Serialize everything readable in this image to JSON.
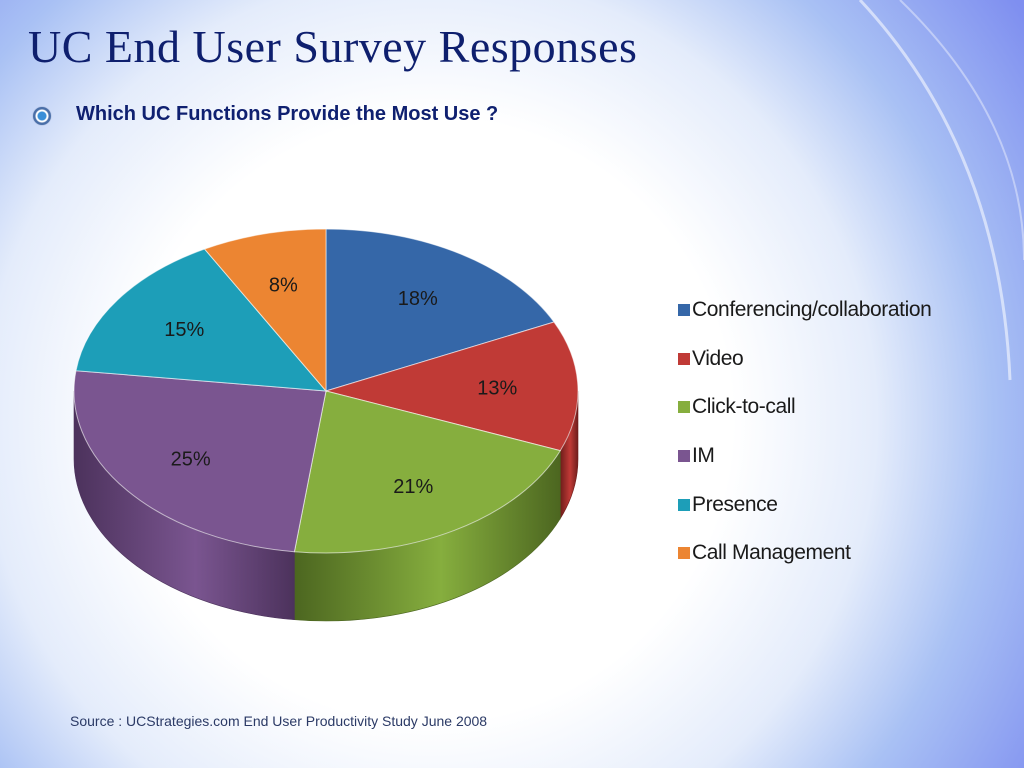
{
  "slide": {
    "title": "UC End User Survey Responses",
    "bullet": "Which UC Functions Provide the Most Use ?",
    "source": "Source : UCStrategies.com End User Productivity Study June 2008"
  },
  "chart_data": {
    "type": "pie",
    "style": "3d",
    "title": "",
    "legend_position": "right",
    "slices": [
      {
        "label": "Conferencing/collaboration",
        "value": 18,
        "value_label": "18%",
        "color": "#3567a8",
        "dark": "#1f3e6a"
      },
      {
        "label": "Video",
        "value": 13,
        "value_label": "13%",
        "color": "#c03a36",
        "dark": "#6e1d1b"
      },
      {
        "label": "Click-to-call",
        "value": 21,
        "value_label": "21%",
        "color": "#86ae3e",
        "dark": "#4c6620"
      },
      {
        "label": "IM",
        "value": 25,
        "value_label": "25%",
        "color": "#7a5590",
        "dark": "#4c325c"
      },
      {
        "label": "Presence",
        "value": 15,
        "value_label": "15%",
        "color": "#1d9eb8",
        "dark": "#0f5f70"
      },
      {
        "label": "Call Management",
        "value": 8,
        "value_label": "8%",
        "color": "#ec8532",
        "dark": "#8f4a16"
      }
    ]
  }
}
